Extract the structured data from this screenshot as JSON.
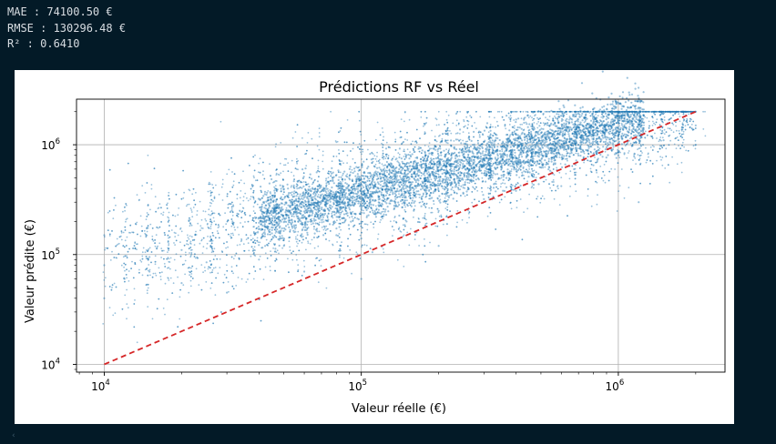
{
  "metrics": {
    "mae": "MAE : 74100.50 €",
    "rmse": "RMSE : 130296.48 €",
    "r2": "R² : 0.6410"
  },
  "chart_data": {
    "type": "scatter",
    "title": "Prédictions RF vs Réel",
    "xlabel": "Valeur réelle (€)",
    "ylabel": "Valeur prédite (€)",
    "xscale": "log",
    "yscale": "log",
    "xlim": [
      7800,
      2600000
    ],
    "ylim": [
      8500,
      2600000
    ],
    "grid": true,
    "x_ticks": [
      {
        "value": 10000,
        "base": "10",
        "exp": "4"
      },
      {
        "value": 100000,
        "base": "10",
        "exp": "5"
      },
      {
        "value": 1000000,
        "base": "10",
        "exp": "6"
      }
    ],
    "y_ticks": [
      {
        "value": 10000,
        "base": "10",
        "exp": "4"
      },
      {
        "value": 100000,
        "base": "10",
        "exp": "5"
      },
      {
        "value": 1000000,
        "base": "10",
        "exp": "6"
      }
    ],
    "scatter_color": "#1f77b4",
    "reference_line": {
      "x": [
        10000,
        2000000
      ],
      "y": [
        10000,
        2000000
      ],
      "color": "#d62728",
      "style": "dashed"
    },
    "point_cloud": {
      "x_range": [
        10000,
        2000000
      ],
      "y_range": [
        10000,
        2000000
      ],
      "points": [
        [
          10000,
          80000
        ],
        [
          10000,
          150000
        ],
        [
          10000,
          40000
        ],
        [
          12000,
          60000
        ],
        [
          15000,
          95000
        ],
        [
          15000,
          70000
        ],
        [
          20000,
          110000
        ],
        [
          20000,
          55000
        ],
        [
          25000,
          85000
        ],
        [
          30000,
          130000
        ],
        [
          30000,
          45000
        ],
        [
          40000,
          90000
        ],
        [
          50000,
          120000
        ],
        [
          60000,
          70000
        ],
        [
          80000,
          150000
        ],
        [
          100000,
          140000
        ],
        [
          100000,
          60000
        ],
        [
          150000,
          200000
        ],
        [
          200000,
          250000
        ],
        [
          200000,
          120000
        ],
        [
          300000,
          320000
        ],
        [
          400000,
          380000
        ],
        [
          500000,
          500000
        ],
        [
          600000,
          420000
        ],
        [
          800000,
          650000
        ],
        [
          1000000,
          800000
        ],
        [
          1000000,
          1200000
        ],
        [
          1500000,
          1100000
        ],
        [
          2000000,
          1500000
        ],
        [
          2000000,
          2000000
        ],
        [
          2000000,
          1000000
        ],
        [
          1200000,
          300000
        ]
      ]
    }
  }
}
